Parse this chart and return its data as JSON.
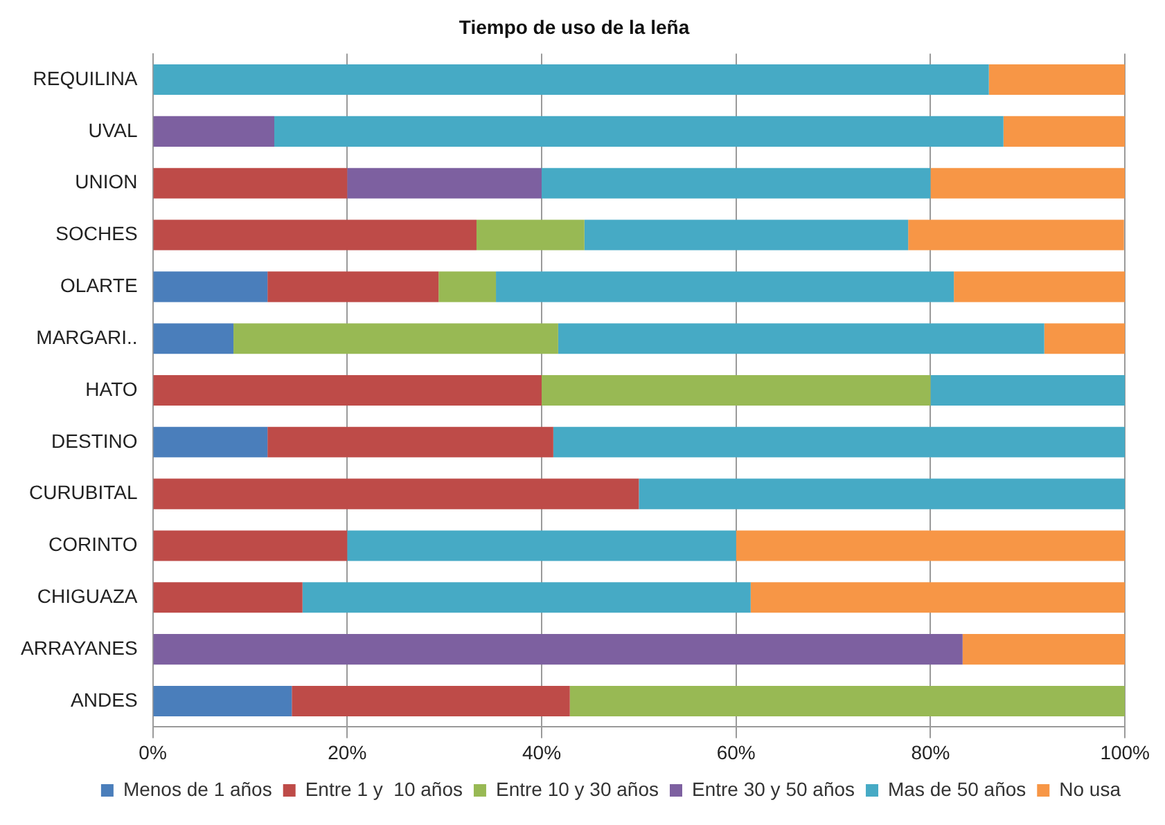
{
  "chart_data": {
    "type": "bar",
    "orientation": "horizontal",
    "stacked": true,
    "title": "Tiempo de uso de la leña",
    "categories": [
      "REQUILINA",
      "UVAL",
      "UNION",
      "SOCHES",
      "OLARTE",
      "MARGARI..",
      "HATO",
      "DESTINO",
      "CURUBITAL",
      "CORINTO",
      "CHIGUAZA",
      "ARRAYANES",
      "ANDES"
    ],
    "series": [
      {
        "name": "Menos de 1 años",
        "color": "#4a7ebb",
        "values": [
          0,
          0,
          0,
          0,
          11.8,
          8.3,
          0,
          11.8,
          0,
          0,
          0,
          0,
          14.3
        ]
      },
      {
        "name": "Entre 1 y  10 años",
        "color": "#be4b48",
        "values": [
          0,
          0,
          20,
          33.3,
          17.6,
          0,
          40,
          29.4,
          50,
          20,
          15.4,
          0,
          28.6
        ]
      },
      {
        "name": "Entre 10 y 30 años",
        "color": "#98b954",
        "values": [
          0,
          0,
          0,
          11.1,
          5.9,
          33.4,
          40,
          0,
          0,
          0,
          0,
          0,
          57.1
        ]
      },
      {
        "name": "Entre 30 y 50 años",
        "color": "#7d60a0",
        "values": [
          0,
          12.5,
          20,
          0,
          0,
          0,
          0,
          0,
          0,
          0,
          0,
          83.3,
          0
        ]
      },
      {
        "name": "Mas de 50 años",
        "color": "#46aac5",
        "values": [
          86,
          75,
          40,
          33.3,
          47.1,
          50,
          20,
          58.8,
          50,
          40,
          46.1,
          0,
          0
        ]
      },
      {
        "name": "No usa",
        "color": "#f79646",
        "values": [
          14,
          12.5,
          20,
          22.2,
          17.6,
          8.3,
          0,
          0,
          0,
          40,
          38.5,
          16.7,
          0
        ]
      }
    ],
    "xlim": [
      0,
      100
    ],
    "xticks": [
      {
        "value": 0,
        "label": "0%"
      },
      {
        "value": 20,
        "label": "20%"
      },
      {
        "value": 40,
        "label": "40%"
      },
      {
        "value": 60,
        "label": "60%"
      },
      {
        "value": 80,
        "label": "80%"
      },
      {
        "value": 100,
        "label": "100%"
      }
    ],
    "grid": "x",
    "legend": "bottom"
  }
}
